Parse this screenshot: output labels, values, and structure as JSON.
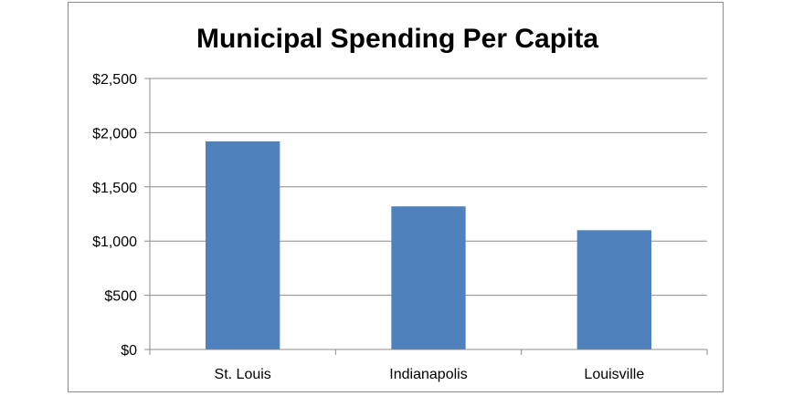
{
  "chart_data": {
    "type": "bar",
    "title": "Municipal Spending Per Capita",
    "xlabel": "",
    "ylabel": "",
    "categories": [
      "St. Louis",
      "Indianapolis",
      "Louisville"
    ],
    "values": [
      1920,
      1320,
      1100
    ],
    "ylim": [
      0,
      2500
    ],
    "yticks": [
      0,
      500,
      1000,
      1500,
      2000,
      2500
    ],
    "ytick_labels": [
      "$0",
      "$500",
      "$1,000",
      "$1,500",
      "$2,000",
      "$2,500"
    ],
    "grid": true,
    "legend": "none",
    "bar_color": "#4f81bd",
    "grid_color": "#8c8c8c"
  }
}
